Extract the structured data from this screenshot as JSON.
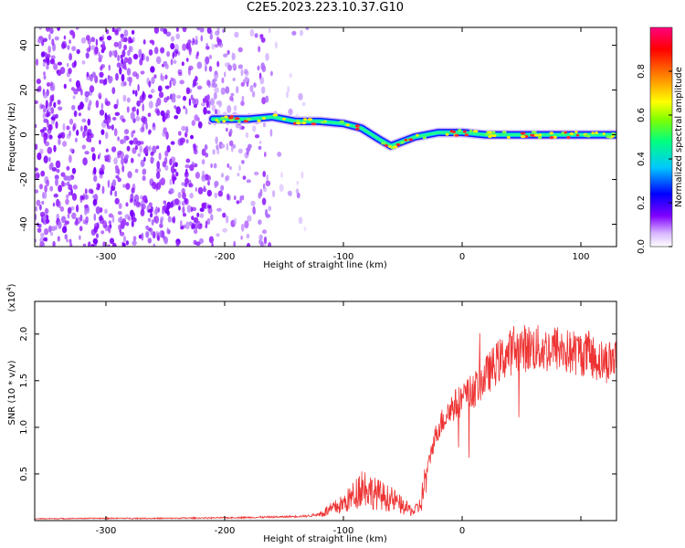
{
  "page_title": "C2E5.2023.223.10.37.G10",
  "chart_data": [
    {
      "type": "heatmap",
      "title": "C2E5.2023.223.10.37.G10",
      "xlabel": "Height of straight line (km)",
      "ylabel": "Frequency (Hz)",
      "xlim": [
        -360,
        130
      ],
      "ylim": [
        -50,
        48
      ],
      "x_ticks": [
        -300,
        -200,
        -100,
        0,
        100
      ],
      "x_tick_labels": [
        "-300",
        "-200",
        "-100",
        "0",
        "100"
      ],
      "y_ticks": [
        -40,
        -20,
        0,
        20,
        40
      ],
      "y_tick_labels": [
        "-40",
        "-20",
        "0",
        "20",
        "40"
      ],
      "colorbar": {
        "label": "Normalized spectral amplitude",
        "range": [
          0,
          1
        ],
        "ticks": [
          0.0,
          0.2,
          0.4,
          0.6,
          0.8
        ],
        "tick_labels": [
          "0.0",
          "0.2",
          "0.4",
          "0.6",
          "0.8"
        ],
        "colors": [
          "#ffffff",
          "#d9b8ff",
          "#8000ff",
          "#0000ff",
          "#00c8ff",
          "#00ff80",
          "#80ff00",
          "#ffff00",
          "#ff8000",
          "#ff0000",
          "#ff0080"
        ]
      },
      "ridge": {
        "x": [
          -210,
          -180,
          -160,
          -140,
          -120,
          -100,
          -85,
          -70,
          -60,
          -50,
          -40,
          -20,
          0,
          20,
          50,
          80,
          100,
          130
        ],
        "y": [
          7,
          7,
          8,
          6,
          6,
          5,
          3,
          -2,
          -5,
          -3,
          -1,
          1,
          1,
          0,
          0,
          0,
          0,
          0
        ]
      }
    },
    {
      "type": "line",
      "xlabel": "Height of straight line (km)",
      "ylabel": "SNR (10 * v/v)",
      "scale_note": "(x10",
      "scale_exp": "4",
      "scale_close": ")",
      "xlim": [
        -360,
        130
      ],
      "ylim": [
        0,
        23500
      ],
      "x_ticks": [
        -300,
        -200,
        -100,
        0
      ],
      "x_tick_labels": [
        "-300",
        "-200",
        "-100",
        "0"
      ],
      "y_ticks": [
        5000,
        10000,
        15000,
        20000
      ],
      "y_tick_labels": [
        "0.5",
        "1.0",
        "1.5",
        "2.0"
      ],
      "series": [
        {
          "color": "#ee3333",
          "x": [
            -360,
            -300,
            -250,
            -200,
            -150,
            -130,
            -120,
            -110,
            -100,
            -90,
            -85,
            -80,
            -75,
            -70,
            -65,
            -60,
            -55,
            -50,
            -45,
            -40,
            -35,
            -30,
            -25,
            -20,
            -10,
            0,
            10,
            20,
            30,
            40,
            50,
            60,
            70,
            80,
            90,
            100,
            110,
            120,
            130
          ],
          "y": [
            200,
            250,
            250,
            300,
            400,
            500,
            700,
            1200,
            1800,
            2800,
            3800,
            3500,
            3000,
            2800,
            2500,
            2300,
            2000,
            1500,
            1200,
            1000,
            1700,
            5000,
            8000,
            10000,
            12000,
            13000,
            14000,
            15500,
            17000,
            18000,
            18500,
            18500,
            18300,
            18500,
            18000,
            18000,
            17500,
            17000,
            17500
          ]
        }
      ]
    }
  ]
}
